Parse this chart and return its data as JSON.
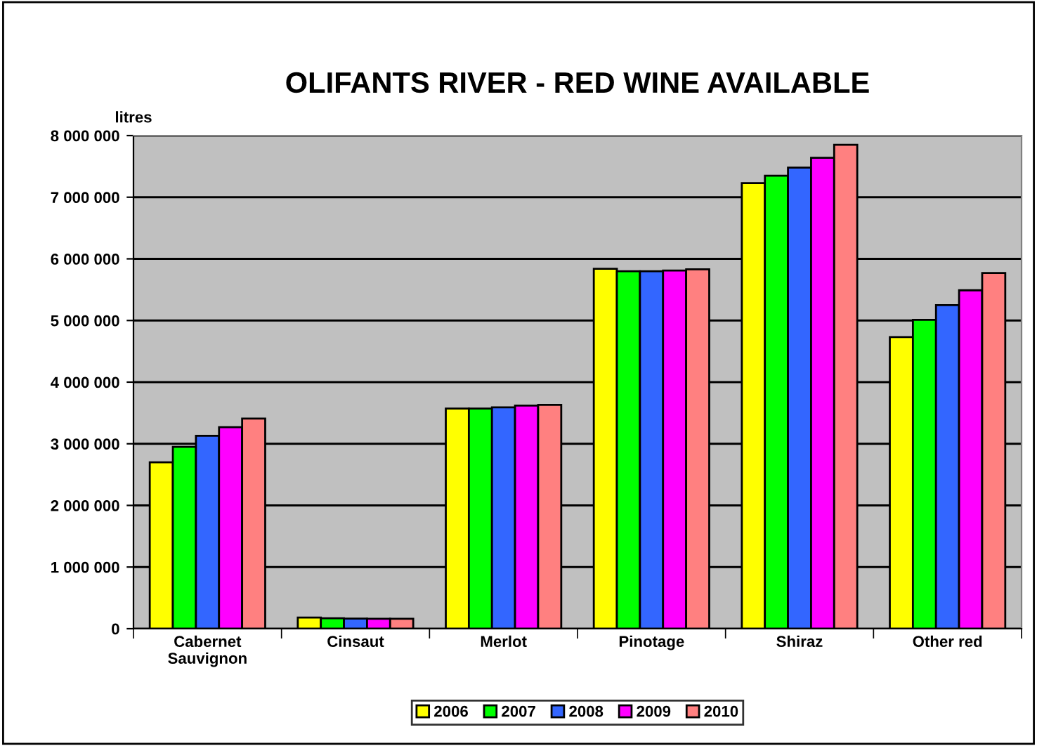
{
  "chart_data": {
    "type": "bar",
    "title": "OLIFANTS RIVER - RED WINE AVAILABLE",
    "ylabel": "litres",
    "categories": [
      "Cabernet\nSauvignon",
      "Cinsaut",
      "Merlot",
      "Pinotage",
      "Shiraz",
      "Other red"
    ],
    "series": [
      {
        "name": "2006",
        "color": "#ffff00",
        "values": [
          2700000,
          180000,
          3570000,
          5840000,
          7230000,
          4730000
        ]
      },
      {
        "name": "2007",
        "color": "#00ff00",
        "values": [
          2950000,
          170000,
          3570000,
          5800000,
          7350000,
          5010000
        ]
      },
      {
        "name": "2008",
        "color": "#3366ff",
        "values": [
          3130000,
          165000,
          3590000,
          5800000,
          7480000,
          5250000
        ]
      },
      {
        "name": "2009",
        "color": "#ff00ff",
        "values": [
          3270000,
          160000,
          3620000,
          5810000,
          7640000,
          5490000
        ]
      },
      {
        "name": "2010",
        "color": "#ff8080",
        "values": [
          3410000,
          160000,
          3630000,
          5830000,
          7850000,
          5770000
        ]
      }
    ],
    "ylim": [
      0,
      8000000
    ],
    "yticks": [
      {
        "value": 0,
        "label": "0"
      },
      {
        "value": 1000000,
        "label": "1 000 000"
      },
      {
        "value": 2000000,
        "label": "2 000 000"
      },
      {
        "value": 3000000,
        "label": "3 000 000"
      },
      {
        "value": 4000000,
        "label": "4 000 000"
      },
      {
        "value": 5000000,
        "label": "5 000 000"
      },
      {
        "value": 6000000,
        "label": "6 000 000"
      },
      {
        "value": 7000000,
        "label": "7 000 000"
      },
      {
        "value": 8000000,
        "label": "8 000 000"
      }
    ],
    "grid": "y",
    "legend": "bottom"
  }
}
